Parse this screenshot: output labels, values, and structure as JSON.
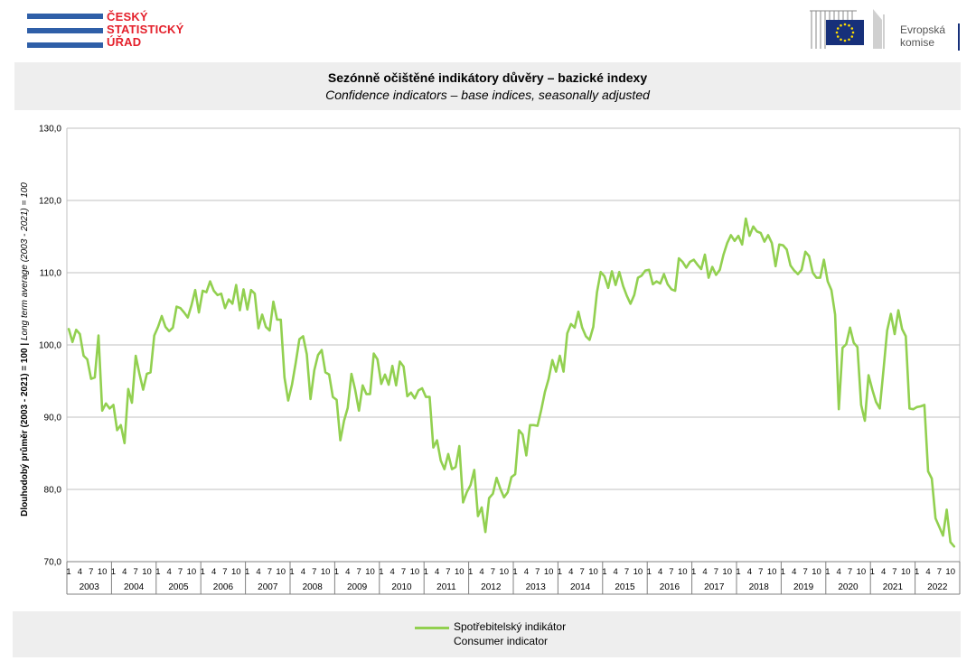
{
  "header": {
    "czso_logo": [
      "ČESKÝ",
      "STATISTICKÝ",
      "ÚŘAD"
    ],
    "ec_logo": [
      "Evropská",
      "komise"
    ]
  },
  "title": "Sezónně očištěné indikátory důvěry – bazické indexy",
  "subtitle": "Confidence indicators – base indices, seasonally adjusted",
  "colors": {
    "series": "#92d050",
    "grid": "#c0c0c0",
    "panel": "#eeeeee",
    "czso_red": "#e41f2a",
    "czso_blue": "#2f5fa8"
  },
  "legend": {
    "label_cz": "Spotřebitelský indikátor",
    "label_en": "Consumer indicator"
  },
  "chart_data": {
    "type": "line",
    "title": "Sezónně očištěné indikátory důvěry – bazické indexy",
    "subtitle": "Confidence indicators – base indices, seasonally adjusted",
    "ylabel_bold": "Dlouhodobý průměr (2003 - 2021) = 100 | ",
    "ylabel_italic": "Long term average (2003 - 2021) = 100",
    "xlabel": "",
    "ylim": [
      70,
      130
    ],
    "yticks": [
      "70,0",
      "80,0",
      "90,0",
      "100,0",
      "110,0",
      "120,0",
      "130,0"
    ],
    "month_ticks": [
      "1",
      "4",
      "7",
      "10"
    ],
    "years": [
      "2003",
      "2004",
      "2005",
      "2006",
      "2007",
      "2008",
      "2009",
      "2010",
      "2011",
      "2012",
      "2013",
      "2014",
      "2015",
      "2016",
      "2017",
      "2018",
      "2019",
      "2020",
      "2021",
      "2022"
    ],
    "grid": true,
    "legend_position": "bottom",
    "series": [
      {
        "name": "Spotřebitelský indikátor / Consumer indicator",
        "start": "2003-01",
        "values": [
          102.2,
          100.4,
          102.1,
          101.5,
          98.5,
          98.0,
          95.3,
          95.5,
          101.3,
          90.9,
          91.9,
          91.2,
          91.7,
          88.2,
          88.9,
          86.4,
          93.9,
          92.0,
          98.5,
          96.0,
          93.8,
          96.0,
          96.2,
          101.3,
          102.5,
          104.0,
          102.5,
          101.9,
          102.4,
          105.3,
          105.1,
          104.5,
          103.8,
          105.5,
          107.6,
          104.5,
          107.5,
          107.3,
          108.8,
          107.5,
          106.9,
          107.1,
          105.1,
          106.3,
          105.7,
          108.3,
          104.8,
          107.7,
          104.9,
          107.6,
          107.1,
          102.3,
          104.2,
          102.5,
          102.0,
          106.0,
          103.5,
          103.5,
          95.5,
          92.3,
          94.5,
          97.5,
          100.8,
          101.2,
          98.7,
          92.5,
          96.5,
          98.6,
          99.3,
          96.2,
          95.9,
          92.8,
          92.4,
          86.8,
          89.5,
          91.3,
          96.0,
          93.8,
          90.9,
          94.4,
          93.2,
          93.2,
          98.8,
          98.0,
          94.6,
          95.9,
          94.5,
          97.1,
          94.4,
          97.7,
          97.0,
          92.9,
          93.4,
          92.6,
          93.7,
          94.0,
          92.8,
          92.8,
          85.8,
          86.8,
          84.0,
          82.8,
          84.9,
          82.8,
          83.1,
          86.0,
          78.2,
          79.6,
          80.6,
          82.7,
          76.3,
          77.5,
          74.1,
          78.8,
          79.4,
          81.6,
          80.1,
          78.9,
          79.6,
          81.7,
          82.1,
          88.2,
          87.6,
          84.7,
          88.9,
          88.9,
          88.8,
          91.0,
          93.5,
          95.3,
          97.9,
          96.3,
          98.5,
          96.3,
          101.6,
          102.9,
          102.4,
          104.6,
          102.4,
          101.2,
          100.7,
          102.5,
          107.3,
          110.1,
          109.5,
          107.9,
          110.2,
          108.3,
          110.1,
          108.2,
          106.8,
          105.7,
          106.9,
          109.3,
          109.6,
          110.3,
          110.4,
          108.4,
          108.8,
          108.5,
          109.8,
          108.4,
          107.7,
          107.5,
          112.0,
          111.5,
          110.7,
          111.5,
          111.8,
          111.1,
          110.5,
          112.5,
          109.3,
          110.8,
          109.7,
          110.4,
          112.5,
          114.1,
          115.2,
          114.4,
          115.1,
          113.9,
          117.5,
          115.1,
          116.4,
          115.7,
          115.5,
          114.3,
          115.2,
          114.1,
          110.9,
          113.9,
          113.8,
          113.2,
          111.0,
          110.3,
          109.8,
          110.4,
          112.9,
          112.3,
          110.0,
          109.3,
          109.3,
          111.8,
          108.8,
          107.6,
          104.2,
          91.1,
          99.6,
          100.1,
          102.4,
          100.3,
          99.7,
          91.7,
          89.5,
          95.8,
          93.8,
          92.1,
          91.2,
          96.5,
          102.0,
          104.3,
          101.5,
          104.8,
          102.2,
          101.2,
          91.2,
          91.1,
          91.4,
          91.5,
          91.7,
          82.5,
          81.5,
          76.0,
          74.8,
          73.6,
          77.2,
          72.7,
          72.1
        ]
      }
    ]
  }
}
